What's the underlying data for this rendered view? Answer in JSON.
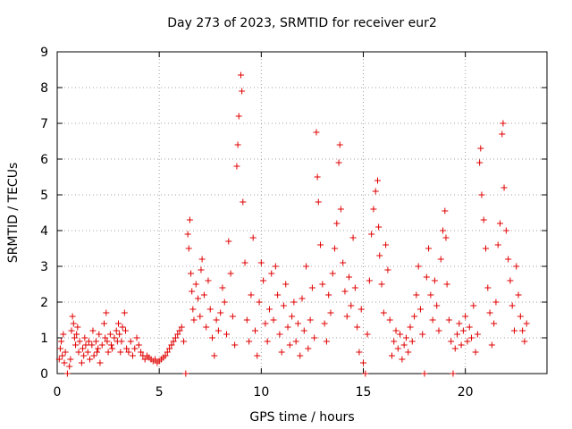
{
  "chart_data": {
    "type": "scatter",
    "title": "Day 273 of 2023, SRMTID for receiver eur2",
    "xlabel": "GPS time / hours",
    "ylabel": "SRMTID / TECUs",
    "xlim": [
      0,
      24
    ],
    "ylim": [
      0,
      9
    ],
    "xticks": [
      0,
      5,
      10,
      15,
      20
    ],
    "yticks": [
      0,
      1,
      2,
      3,
      4,
      5,
      6,
      7,
      8,
      9
    ],
    "xtick_labels": [
      "0",
      "5",
      "10",
      "15",
      "20"
    ],
    "ytick_labels": [
      "0",
      "1",
      "2",
      "3",
      "4",
      "5",
      "6",
      "7",
      "8",
      "9"
    ],
    "grid": true,
    "marker": "plus",
    "color": "#e00000",
    "series": [
      {
        "name": "SRMTID",
        "points": [
          [
            0.1,
            0.4
          ],
          [
            0.15,
            0.7
          ],
          [
            0.2,
            0.9
          ],
          [
            0.25,
            0.5
          ],
          [
            0.3,
            1.1
          ],
          [
            0.35,
            0.3
          ],
          [
            0.4,
            0.6
          ],
          [
            0.5,
            0.0
          ],
          [
            0.6,
            0.2
          ],
          [
            0.65,
            0.4
          ],
          [
            0.7,
            1.2
          ],
          [
            0.75,
            1.6
          ],
          [
            0.8,
            1.4
          ],
          [
            0.85,
            1.0
          ],
          [
            0.9,
            0.8
          ],
          [
            0.95,
            1.1
          ],
          [
            1.0,
            1.3
          ],
          [
            1.05,
            0.6
          ],
          [
            1.1,
            0.9
          ],
          [
            1.2,
            0.3
          ],
          [
            1.25,
            0.7
          ],
          [
            1.3,
            0.5
          ],
          [
            1.35,
            1.0
          ],
          [
            1.4,
            0.8
          ],
          [
            1.5,
            0.6
          ],
          [
            1.55,
            0.9
          ],
          [
            1.6,
            0.4
          ],
          [
            1.7,
            0.8
          ],
          [
            1.75,
            1.2
          ],
          [
            1.8,
            0.5
          ],
          [
            1.9,
            0.9
          ],
          [
            1.95,
            0.6
          ],
          [
            2.0,
            0.7
          ],
          [
            2.05,
            1.1
          ],
          [
            2.1,
            0.3
          ],
          [
            2.2,
            0.8
          ],
          [
            2.3,
            1.4
          ],
          [
            2.35,
            1.0
          ],
          [
            2.4,
            1.7
          ],
          [
            2.45,
            0.9
          ],
          [
            2.5,
            0.6
          ],
          [
            2.6,
            1.1
          ],
          [
            2.65,
            0.8
          ],
          [
            2.7,
            0.7
          ],
          [
            2.8,
            1.0
          ],
          [
            2.9,
            1.2
          ],
          [
            2.95,
            0.9
          ],
          [
            3.0,
            1.4
          ],
          [
            3.05,
            1.1
          ],
          [
            3.1,
            0.6
          ],
          [
            3.15,
            0.9
          ],
          [
            3.2,
            1.3
          ],
          [
            3.3,
            1.7
          ],
          [
            3.35,
            1.2
          ],
          [
            3.4,
            0.7
          ],
          [
            3.5,
            0.6
          ],
          [
            3.6,
            0.9
          ],
          [
            3.7,
            0.5
          ],
          [
            3.8,
            0.7
          ],
          [
            3.9,
            1.0
          ],
          [
            4.0,
            0.8
          ],
          [
            4.1,
            0.6
          ],
          [
            4.2,
            0.5
          ],
          [
            4.3,
            0.4
          ],
          [
            4.4,
            0.5
          ],
          [
            4.5,
            0.45
          ],
          [
            4.6,
            0.4
          ],
          [
            4.7,
            0.35
          ],
          [
            4.8,
            0.4
          ],
          [
            4.9,
            0.3
          ],
          [
            5.0,
            0.35
          ],
          [
            5.1,
            0.4
          ],
          [
            5.2,
            0.45
          ],
          [
            5.3,
            0.5
          ],
          [
            5.4,
            0.6
          ],
          [
            5.5,
            0.7
          ],
          [
            5.6,
            0.8
          ],
          [
            5.7,
            0.9
          ],
          [
            5.8,
            1.0
          ],
          [
            5.9,
            1.1
          ],
          [
            6.0,
            1.2
          ],
          [
            6.1,
            1.3
          ],
          [
            6.2,
            0.9
          ],
          [
            6.3,
            0.0
          ],
          [
            6.4,
            3.9
          ],
          [
            6.45,
            3.5
          ],
          [
            6.5,
            4.3
          ],
          [
            6.55,
            2.8
          ],
          [
            6.6,
            2.3
          ],
          [
            6.65,
            1.8
          ],
          [
            6.7,
            1.5
          ],
          [
            6.8,
            2.5
          ],
          [
            6.9,
            2.1
          ],
          [
            7.0,
            1.6
          ],
          [
            7.05,
            2.9
          ],
          [
            7.1,
            3.2
          ],
          [
            7.2,
            2.2
          ],
          [
            7.3,
            1.3
          ],
          [
            7.4,
            2.6
          ],
          [
            7.5,
            1.8
          ],
          [
            7.6,
            1.0
          ],
          [
            7.7,
            0.5
          ],
          [
            7.8,
            1.5
          ],
          [
            7.9,
            1.2
          ],
          [
            8.0,
            1.7
          ],
          [
            8.1,
            2.4
          ],
          [
            8.2,
            2.0
          ],
          [
            8.3,
            1.1
          ],
          [
            8.4,
            3.7
          ],
          [
            8.5,
            2.8
          ],
          [
            8.6,
            1.6
          ],
          [
            8.7,
            0.8
          ],
          [
            8.8,
            5.8
          ],
          [
            8.85,
            6.4
          ],
          [
            8.9,
            7.2
          ],
          [
            9.0,
            8.35
          ],
          [
            9.05,
            7.9
          ],
          [
            9.1,
            4.8
          ],
          [
            9.2,
            3.1
          ],
          [
            9.3,
            1.5
          ],
          [
            9.4,
            0.9
          ],
          [
            9.5,
            2.2
          ],
          [
            9.6,
            3.8
          ],
          [
            9.7,
            1.2
          ],
          [
            9.8,
            0.5
          ],
          [
            9.9,
            2.0
          ],
          [
            10.0,
            3.1
          ],
          [
            10.1,
            2.6
          ],
          [
            10.2,
            1.4
          ],
          [
            10.3,
            0.9
          ],
          [
            10.4,
            1.8
          ],
          [
            10.5,
            2.8
          ],
          [
            10.6,
            1.5
          ],
          [
            10.7,
            3.0
          ],
          [
            10.8,
            2.2
          ],
          [
            10.9,
            1.1
          ],
          [
            11.0,
            0.6
          ],
          [
            11.1,
            1.9
          ],
          [
            11.2,
            2.5
          ],
          [
            11.3,
            1.3
          ],
          [
            11.4,
            0.8
          ],
          [
            11.5,
            1.6
          ],
          [
            11.6,
            2.0
          ],
          [
            11.7,
            0.9
          ],
          [
            11.8,
            1.4
          ],
          [
            11.9,
            0.5
          ],
          [
            12.0,
            2.1
          ],
          [
            12.1,
            1.2
          ],
          [
            12.2,
            3.0
          ],
          [
            12.3,
            0.7
          ],
          [
            12.4,
            1.5
          ],
          [
            12.5,
            2.4
          ],
          [
            12.6,
            1.0
          ],
          [
            12.7,
            6.75
          ],
          [
            12.75,
            5.5
          ],
          [
            12.8,
            4.8
          ],
          [
            12.9,
            3.6
          ],
          [
            13.0,
            2.5
          ],
          [
            13.1,
            1.4
          ],
          [
            13.2,
            0.9
          ],
          [
            13.3,
            2.2
          ],
          [
            13.4,
            1.7
          ],
          [
            13.5,
            2.8
          ],
          [
            13.6,
            3.5
          ],
          [
            13.7,
            4.2
          ],
          [
            13.8,
            5.9
          ],
          [
            13.85,
            6.4
          ],
          [
            13.9,
            4.6
          ],
          [
            14.0,
            3.1
          ],
          [
            14.1,
            2.3
          ],
          [
            14.2,
            1.6
          ],
          [
            14.3,
            2.7
          ],
          [
            14.4,
            1.9
          ],
          [
            14.5,
            3.8
          ],
          [
            14.6,
            2.4
          ],
          [
            14.7,
            1.3
          ],
          [
            14.8,
            0.6
          ],
          [
            14.9,
            1.8
          ],
          [
            15.0,
            0.3
          ],
          [
            15.1,
            0.0
          ],
          [
            15.2,
            1.1
          ],
          [
            15.3,
            2.6
          ],
          [
            15.4,
            3.9
          ],
          [
            15.5,
            4.6
          ],
          [
            15.6,
            5.1
          ],
          [
            15.7,
            5.4
          ],
          [
            15.75,
            4.1
          ],
          [
            15.8,
            3.3
          ],
          [
            15.9,
            2.5
          ],
          [
            16.0,
            1.7
          ],
          [
            16.1,
            3.6
          ],
          [
            16.2,
            2.9
          ],
          [
            16.3,
            1.5
          ],
          [
            16.4,
            0.5
          ],
          [
            16.5,
            0.9
          ],
          [
            16.6,
            1.2
          ],
          [
            16.7,
            0.7
          ],
          [
            16.8,
            1.1
          ],
          [
            16.9,
            0.4
          ],
          [
            17.0,
            0.8
          ],
          [
            17.1,
            1.0
          ],
          [
            17.2,
            0.6
          ],
          [
            17.3,
            1.3
          ],
          [
            17.4,
            0.9
          ],
          [
            17.5,
            1.6
          ],
          [
            17.6,
            2.2
          ],
          [
            17.7,
            3.0
          ],
          [
            17.8,
            1.8
          ],
          [
            17.9,
            1.1
          ],
          [
            18.0,
            0.0
          ],
          [
            18.1,
            2.7
          ],
          [
            18.2,
            3.5
          ],
          [
            18.3,
            2.2
          ],
          [
            18.4,
            1.5
          ],
          [
            18.5,
            2.6
          ],
          [
            18.6,
            1.9
          ],
          [
            18.7,
            1.2
          ],
          [
            18.8,
            3.2
          ],
          [
            18.9,
            4.0
          ],
          [
            19.0,
            4.55
          ],
          [
            19.05,
            3.8
          ],
          [
            19.1,
            2.5
          ],
          [
            19.2,
            1.5
          ],
          [
            19.3,
            0.9
          ],
          [
            19.4,
            0.0
          ],
          [
            19.5,
            0.7
          ],
          [
            19.6,
            1.1
          ],
          [
            19.7,
            1.4
          ],
          [
            19.8,
            0.8
          ],
          [
            19.9,
            1.2
          ],
          [
            20.0,
            1.6
          ],
          [
            20.1,
            0.9
          ],
          [
            20.2,
            1.3
          ],
          [
            20.3,
            1.0
          ],
          [
            20.4,
            1.9
          ],
          [
            20.5,
            0.6
          ],
          [
            20.6,
            1.1
          ],
          [
            20.7,
            5.9
          ],
          [
            20.75,
            6.3
          ],
          [
            20.8,
            5.0
          ],
          [
            20.9,
            4.3
          ],
          [
            21.0,
            3.5
          ],
          [
            21.1,
            2.4
          ],
          [
            21.2,
            1.7
          ],
          [
            21.3,
            0.8
          ],
          [
            21.4,
            1.4
          ],
          [
            21.5,
            2.0
          ],
          [
            21.6,
            3.6
          ],
          [
            21.7,
            4.2
          ],
          [
            21.8,
            6.7
          ],
          [
            21.85,
            7.0
          ],
          [
            21.9,
            5.2
          ],
          [
            22.0,
            4.0
          ],
          [
            22.1,
            3.2
          ],
          [
            22.2,
            2.6
          ],
          [
            22.3,
            1.9
          ],
          [
            22.4,
            1.2
          ],
          [
            22.5,
            3.0
          ],
          [
            22.6,
            2.2
          ],
          [
            22.7,
            1.6
          ],
          [
            22.8,
            1.2
          ],
          [
            22.9,
            0.9
          ],
          [
            23.0,
            1.4
          ]
        ]
      }
    ]
  }
}
